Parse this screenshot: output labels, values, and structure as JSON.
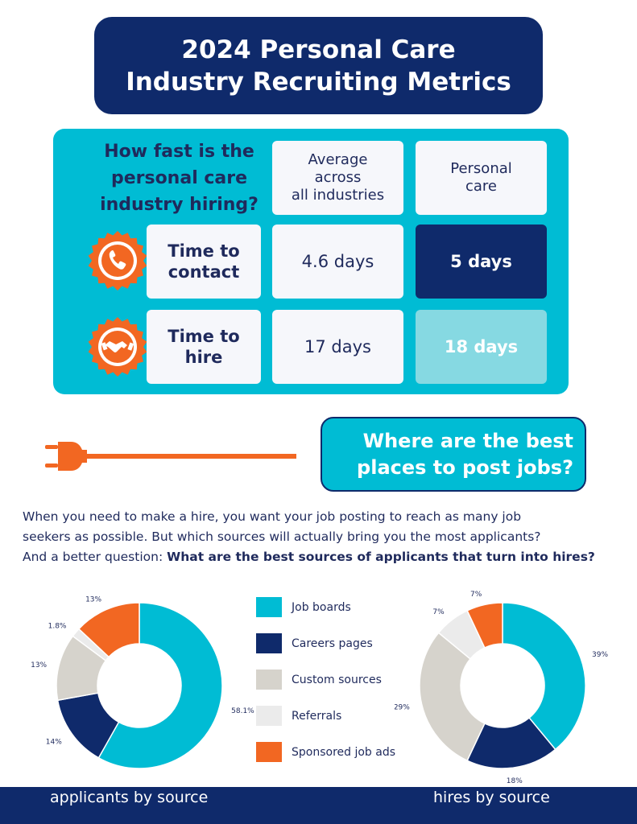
{
  "title": {
    "line1": "2024 Personal Care",
    "line2": "Industry Recruiting Metrics"
  },
  "speed": {
    "question": [
      "How fast is the",
      "personal care",
      "industry hiring?"
    ],
    "col_avg_header": [
      "Average",
      "across",
      "all industries"
    ],
    "col_pc_header": [
      "Personal",
      "care"
    ],
    "rows": [
      {
        "metric": [
          "Time to",
          "contact"
        ],
        "avg": "4.6 days",
        "pc": "5 days",
        "icon": "phone-icon"
      },
      {
        "metric": [
          "Time to",
          "hire"
        ],
        "avg": "17 days",
        "pc": "18 days",
        "icon": "handshake-icon"
      }
    ]
  },
  "post_bubble": [
    "Where are the best",
    "places to post jobs?"
  ],
  "intro": {
    "line1": "When you need to make a hire, you want your job posting to reach as many job",
    "line2": "seekers as possible. But which sources will actually bring you the most applicants?",
    "line3_plain": "And a better question: ",
    "line3_bold": "What are the best sources of applicants that turn into hires?"
  },
  "colors": {
    "navy": "#0f2a6b",
    "cyan": "#00bcd4",
    "light_cyan": "#86d9e2",
    "orange": "#f26722",
    "warm_grey": "#d6d3cc",
    "light_grey": "#ebebeb"
  },
  "legend": [
    {
      "label": "Job boards",
      "color": "#00bcd4"
    },
    {
      "label": "Careers pages",
      "color": "#0f2a6b"
    },
    {
      "label": "Custom sources",
      "color": "#d6d3cc"
    },
    {
      "label": "Referrals",
      "color": "#ebebeb"
    },
    {
      "label": "Sponsored job ads",
      "color": "#f26722"
    }
  ],
  "chart_data": [
    {
      "type": "pie",
      "title": "applicants by source",
      "categories": [
        "Job boards",
        "Careers pages",
        "Custom sources",
        "Referrals",
        "Sponsored job ads"
      ],
      "values": [
        58.1,
        14,
        13,
        1.8,
        13
      ],
      "labels": [
        "58.1%",
        "14%",
        "13%",
        "1.8%",
        "13%"
      ]
    },
    {
      "type": "pie",
      "title": "hires by source",
      "categories": [
        "Job boards",
        "Careers pages",
        "Custom sources",
        "Referrals",
        "Sponsored job ads"
      ],
      "values": [
        39,
        18,
        29,
        7,
        7
      ],
      "labels": [
        "39%",
        "18%",
        "29%",
        "7%",
        "7%"
      ]
    }
  ]
}
